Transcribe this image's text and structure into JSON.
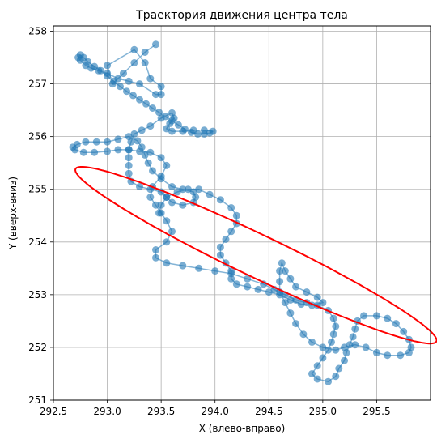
{
  "chart_data": {
    "type": "scatter",
    "title": "Траектория движения центра тела",
    "xlabel": "X (влево-вправо)",
    "ylabel": "Y (вверх-вниз)",
    "xlim": [
      292.5,
      296.0
    ],
    "ylim": [
      251.0,
      258.1
    ],
    "xticks": [
      "292.5",
      "293.0",
      "293.5",
      "294.0",
      "294.5",
      "295.0",
      "295.5"
    ],
    "xtick_values": [
      292.5,
      293.0,
      293.5,
      294.0,
      294.5,
      295.0,
      295.5
    ],
    "yticks": [
      "251",
      "252",
      "253",
      "254",
      "255",
      "256",
      "257",
      "258"
    ],
    "ytick_values": [
      251,
      252,
      253,
      254,
      255,
      256,
      257,
      258
    ],
    "grid": true,
    "colors": {
      "points": "#1f77b4",
      "ellipse": "#ff0000"
    },
    "series": [
      {
        "values": [
          [
            293.45,
            257.75
          ],
          [
            293.35,
            257.6
          ],
          [
            293.25,
            257.4
          ],
          [
            293.15,
            257.2
          ],
          [
            293.05,
            257.0
          ],
          [
            293.0,
            257.35
          ],
          [
            293.25,
            257.65
          ],
          [
            293.35,
            257.4
          ],
          [
            293.4,
            257.1
          ],
          [
            293.5,
            256.95
          ],
          [
            293.5,
            256.8
          ],
          [
            293.45,
            256.8
          ],
          [
            293.3,
            257.0
          ],
          [
            293.2,
            257.05
          ],
          [
            293.1,
            257.1
          ],
          [
            293.0,
            257.2
          ],
          [
            292.92,
            257.25
          ],
          [
            292.85,
            257.3
          ],
          [
            292.8,
            257.35
          ],
          [
            292.75,
            257.45
          ],
          [
            292.73,
            257.5
          ],
          [
            292.75,
            257.55
          ],
          [
            292.78,
            257.5
          ],
          [
            292.82,
            257.42
          ],
          [
            292.88,
            257.33
          ],
          [
            292.94,
            257.25
          ],
          [
            293.0,
            257.15
          ],
          [
            293.06,
            257.05
          ],
          [
            293.12,
            256.95
          ],
          [
            293.18,
            256.86
          ],
          [
            293.24,
            256.78
          ],
          [
            293.3,
            256.7
          ],
          [
            293.36,
            256.62
          ],
          [
            293.42,
            256.54
          ],
          [
            293.48,
            256.46
          ],
          [
            293.54,
            256.38
          ],
          [
            293.6,
            256.3
          ],
          [
            293.66,
            256.22
          ],
          [
            293.72,
            256.14
          ],
          [
            293.78,
            256.08
          ],
          [
            293.84,
            256.05
          ],
          [
            293.9,
            256.05
          ],
          [
            293.95,
            256.07
          ],
          [
            293.98,
            256.1
          ],
          [
            293.9,
            256.12
          ],
          [
            293.8,
            256.12
          ],
          [
            293.7,
            256.1
          ],
          [
            293.6,
            256.1
          ],
          [
            293.55,
            256.15
          ],
          [
            293.58,
            256.25
          ],
          [
            293.62,
            256.35
          ],
          [
            293.6,
            256.45
          ],
          [
            293.5,
            256.35
          ],
          [
            293.4,
            256.2
          ],
          [
            293.32,
            256.12
          ],
          [
            293.25,
            256.05
          ],
          [
            293.22,
            255.9
          ],
          [
            293.2,
            255.75
          ],
          [
            293.2,
            255.6
          ],
          [
            293.2,
            255.45
          ],
          [
            293.2,
            255.3
          ],
          [
            293.22,
            255.15
          ],
          [
            293.3,
            255.05
          ],
          [
            293.4,
            255.0
          ],
          [
            293.5,
            254.95
          ],
          [
            293.55,
            254.85
          ],
          [
            293.6,
            254.75
          ],
          [
            293.7,
            254.7
          ],
          [
            293.8,
            254.75
          ],
          [
            293.82,
            254.85
          ],
          [
            293.8,
            254.95
          ],
          [
            293.7,
            255.0
          ],
          [
            293.6,
            255.05
          ],
          [
            293.5,
            255.2
          ],
          [
            293.42,
            255.35
          ],
          [
            293.38,
            255.5
          ],
          [
            293.35,
            255.65
          ],
          [
            293.32,
            255.8
          ],
          [
            293.28,
            255.92
          ],
          [
            293.2,
            256.0
          ],
          [
            293.1,
            255.95
          ],
          [
            293.0,
            255.9
          ],
          [
            292.9,
            255.9
          ],
          [
            292.8,
            255.9
          ],
          [
            292.72,
            255.85
          ],
          [
            292.68,
            255.8
          ],
          [
            292.7,
            255.75
          ],
          [
            292.78,
            255.7
          ],
          [
            292.88,
            255.7
          ],
          [
            293.0,
            255.72
          ],
          [
            293.1,
            255.75
          ],
          [
            293.2,
            255.75
          ],
          [
            293.3,
            255.72
          ],
          [
            293.4,
            255.7
          ],
          [
            293.5,
            255.6
          ],
          [
            293.55,
            255.45
          ],
          [
            293.5,
            255.25
          ],
          [
            293.42,
            255.05
          ],
          [
            293.4,
            254.85
          ],
          [
            293.45,
            254.7
          ],
          [
            293.5,
            254.55
          ],
          [
            293.55,
            254.4
          ],
          [
            293.6,
            254.2
          ],
          [
            293.55,
            254.0
          ],
          [
            293.45,
            253.85
          ],
          [
            293.45,
            253.7
          ],
          [
            293.55,
            253.6
          ],
          [
            293.7,
            253.55
          ],
          [
            293.85,
            253.5
          ],
          [
            294.0,
            253.45
          ],
          [
            294.15,
            253.4
          ],
          [
            294.3,
            253.3
          ],
          [
            294.45,
            253.2
          ],
          [
            294.55,
            253.1
          ],
          [
            294.65,
            253.0
          ],
          [
            294.75,
            252.9
          ],
          [
            294.85,
            252.85
          ],
          [
            294.95,
            252.8
          ],
          [
            295.05,
            252.7
          ],
          [
            295.1,
            252.55
          ],
          [
            295.12,
            252.4
          ],
          [
            295.1,
            252.25
          ],
          [
            295.08,
            252.1
          ],
          [
            295.05,
            251.95
          ],
          [
            295.0,
            251.8
          ],
          [
            294.95,
            251.65
          ],
          [
            294.9,
            251.5
          ],
          [
            294.95,
            251.4
          ],
          [
            295.05,
            251.35
          ],
          [
            295.12,
            251.45
          ],
          [
            295.15,
            251.6
          ],
          [
            295.2,
            251.75
          ],
          [
            295.22,
            251.9
          ],
          [
            295.25,
            252.05
          ],
          [
            295.28,
            252.2
          ],
          [
            295.3,
            252.35
          ],
          [
            295.32,
            252.5
          ],
          [
            295.38,
            252.6
          ],
          [
            295.5,
            252.6
          ],
          [
            295.6,
            252.55
          ],
          [
            295.68,
            252.45
          ],
          [
            295.75,
            252.3
          ],
          [
            295.8,
            252.15
          ],
          [
            295.82,
            252.0
          ],
          [
            295.8,
            251.9
          ],
          [
            295.72,
            251.85
          ],
          [
            295.6,
            251.85
          ],
          [
            295.5,
            251.9
          ],
          [
            295.4,
            252.0
          ],
          [
            295.3,
            252.05
          ],
          [
            295.2,
            252.0
          ],
          [
            295.12,
            251.95
          ],
          [
            295.0,
            252.0
          ],
          [
            294.9,
            252.1
          ],
          [
            294.82,
            252.25
          ],
          [
            294.75,
            252.45
          ],
          [
            294.7,
            252.65
          ],
          [
            294.65,
            252.85
          ],
          [
            294.6,
            253.05
          ],
          [
            294.6,
            253.25
          ],
          [
            294.6,
            253.45
          ],
          [
            294.62,
            253.6
          ],
          [
            294.65,
            253.45
          ],
          [
            294.7,
            253.3
          ],
          [
            294.75,
            253.15
          ],
          [
            294.85,
            253.05
          ],
          [
            294.95,
            252.95
          ],
          [
            295.0,
            252.85
          ],
          [
            294.9,
            252.8
          ],
          [
            294.8,
            252.82
          ],
          [
            294.7,
            252.9
          ],
          [
            294.6,
            253.0
          ],
          [
            294.5,
            253.05
          ],
          [
            294.4,
            253.1
          ],
          [
            294.3,
            253.15
          ],
          [
            294.2,
            253.2
          ],
          [
            294.15,
            253.3
          ],
          [
            294.15,
            253.45
          ],
          [
            294.1,
            253.6
          ],
          [
            294.05,
            253.75
          ],
          [
            294.05,
            253.9
          ],
          [
            294.1,
            254.05
          ],
          [
            294.15,
            254.2
          ],
          [
            294.2,
            254.35
          ],
          [
            294.2,
            254.5
          ],
          [
            294.15,
            254.65
          ],
          [
            294.05,
            254.8
          ],
          [
            293.95,
            254.9
          ],
          [
            293.85,
            255.0
          ],
          [
            293.75,
            255.0
          ],
          [
            293.65,
            254.95
          ],
          [
            293.55,
            254.85
          ],
          [
            293.5,
            254.7
          ],
          [
            293.48,
            254.55
          ]
        ]
      }
    ],
    "ellipse": {
      "center": [
        294.38,
        253.75
      ],
      "semi_major": 2.35,
      "semi_minor": 0.32,
      "angle_deg": -45
    }
  }
}
